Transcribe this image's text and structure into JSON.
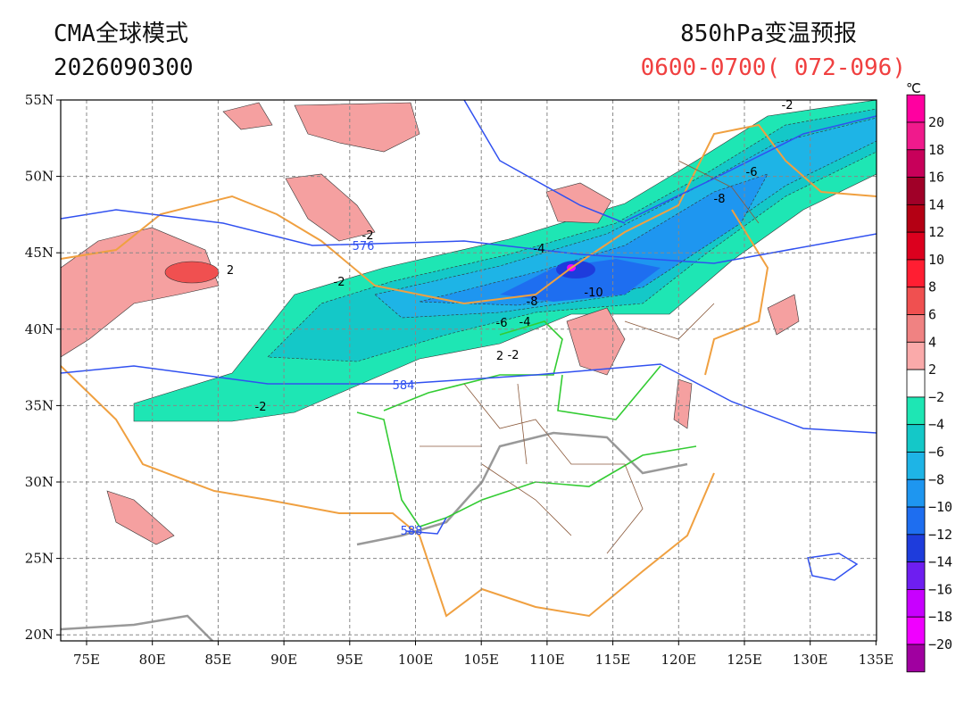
{
  "header": {
    "model": "CMA全球模式",
    "init_time": "2026090300",
    "title": "850hPa变温预报",
    "period": "0600-0700( 072-096)"
  },
  "map": {
    "lon_labels": [
      "75E",
      "80E",
      "85E",
      "90E",
      "95E",
      "100E",
      "105E",
      "110E",
      "115E",
      "120E",
      "125E",
      "130E",
      "135E"
    ],
    "lat_labels": [
      "55N",
      "50N",
      "45N",
      "40N",
      "35N",
      "30N",
      "25N",
      "20N"
    ],
    "height_labels": [
      "576",
      "584",
      "588"
    ],
    "temp_labels": [
      "-2",
      "-2",
      "-4",
      "-6",
      "-8",
      "-8",
      "-10",
      "-6",
      "-4",
      "-2",
      "-2",
      "-2",
      "2",
      "2"
    ]
  },
  "colorbar": {
    "unit": "℃",
    "labels": [
      "20",
      "18",
      "16",
      "14",
      "12",
      "10",
      "8",
      "6",
      "4",
      "2",
      "−2",
      "−4",
      "−6",
      "−8",
      "−10",
      "−12",
      "−14",
      "−16",
      "−18",
      "−20"
    ]
  }
}
